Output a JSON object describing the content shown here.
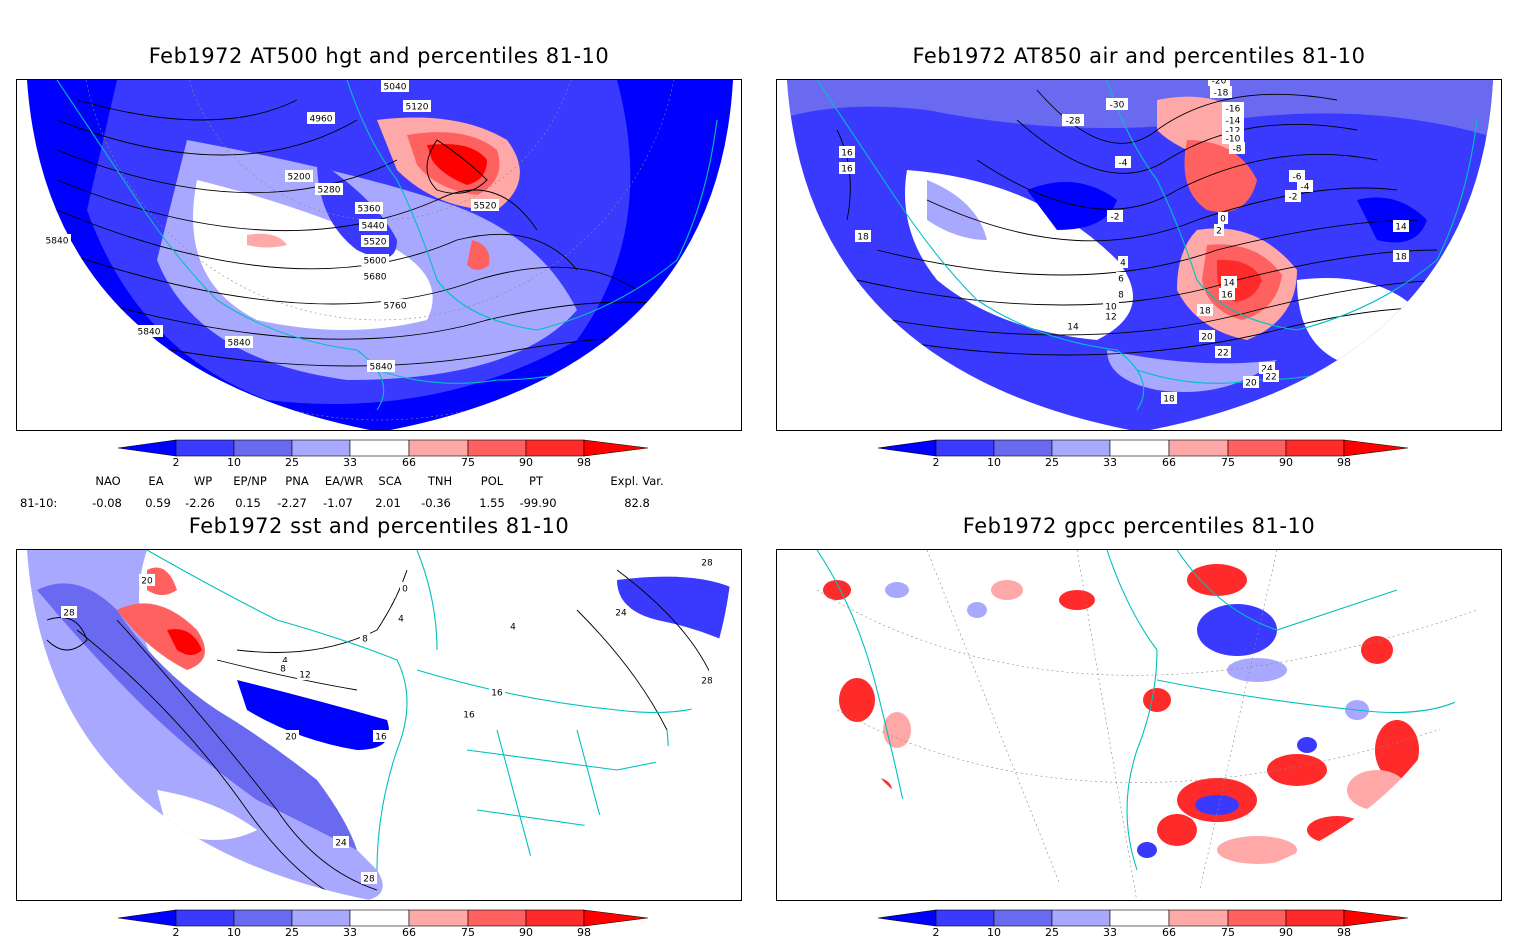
{
  "panels": [
    {
      "id": "hgt",
      "title": "Feb1972 AT500 hgt and percentiles 81-10",
      "contour_labels": [
        "5040",
        "5120",
        "4960",
        "5200",
        "5280",
        "5360",
        "5440",
        "5520",
        "5600",
        "5680",
        "5760",
        "5840",
        "5840",
        "5840",
        "5520",
        "5840"
      ]
    },
    {
      "id": "air",
      "title": "Feb1972 AT850 air and percentiles 81-10",
      "contour_labels": [
        "-20",
        "-18",
        "-16",
        "-14",
        "-12",
        "-10",
        "-8",
        "-30",
        "-28",
        "-4",
        "-6",
        "-4",
        "-2",
        "-2",
        "0",
        "2",
        "4",
        "6",
        "8",
        "10",
        "12",
        "14",
        "14",
        "16",
        "18",
        "20",
        "22",
        "24",
        "22",
        "20",
        "18",
        "16",
        "16",
        "18",
        "14",
        "18"
      ]
    },
    {
      "id": "sst",
      "title": "Feb1972 sst and percentiles 81-10",
      "contour_labels": [
        "20",
        "28",
        "0",
        "4",
        "8",
        "4",
        "8",
        "12",
        "16",
        "20",
        "24",
        "28",
        "24",
        "28",
        "28",
        "16",
        "16",
        "4"
      ]
    },
    {
      "id": "gpcc",
      "title": "Feb1972 gpcc percentiles 81-10",
      "contour_labels": []
    }
  ],
  "colorbar": {
    "labels": [
      "2",
      "10",
      "25",
      "33",
      "66",
      "75",
      "90",
      "98"
    ],
    "colors": [
      "#0000ff",
      "#3a3aff",
      "#6a6af0",
      "#a8a8ff",
      "#ffffff",
      "#ffa8a8",
      "#ff6060",
      "#ff2a2a",
      "#ff0000"
    ]
  },
  "indices": {
    "headers": [
      "NAO",
      "EA",
      "WP",
      "EP/NP",
      "PNA",
      "EA/WR",
      "SCA",
      "TNH",
      "POL",
      "PT",
      "Expl. Var."
    ],
    "row_label": "81-10:",
    "values": [
      "-0.08",
      "0.59",
      "-2.26",
      "0.15",
      "-2.27",
      "-1.07",
      "2.01",
      "-0.36",
      "1.55",
      "-99.90",
      "82.8"
    ]
  }
}
